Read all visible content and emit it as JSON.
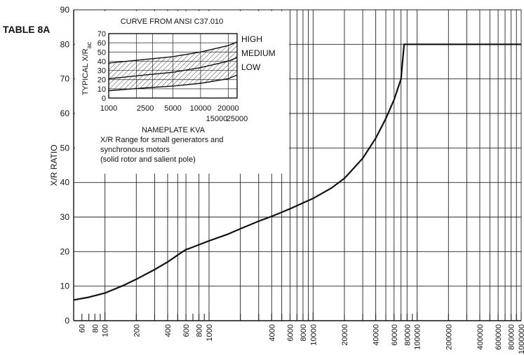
{
  "table_label": "TABLE 8A",
  "chart_data": {
    "type": "line",
    "xlabel": "",
    "ylabel": "X/R RATIO",
    "xscale": "log",
    "xlim": [
      50,
      1000000
    ],
    "ylim": [
      0,
      90
    ],
    "yticks": [
      0,
      10,
      20,
      30,
      40,
      50,
      60,
      70,
      80,
      90
    ],
    "yticks_right": [
      60,
      70,
      80
    ],
    "xtick_labels": [
      {
        "v": 60,
        "t": "60"
      },
      {
        "v": 80,
        "t": "80"
      },
      {
        "v": 100,
        "t": "100"
      },
      {
        "v": 200,
        "t": "200"
      },
      {
        "v": 400,
        "t": "400"
      },
      {
        "v": 600,
        "t": "600"
      },
      {
        "v": 800,
        "t": "800"
      },
      {
        "v": 1000,
        "t": "1000"
      },
      {
        "v": 4000,
        "t": "4000"
      },
      {
        "v": 6000,
        "t": "6000"
      },
      {
        "v": 8000,
        "t": "8000"
      },
      {
        "v": 10000,
        "t": "10000"
      },
      {
        "v": 20000,
        "t": "20000"
      },
      {
        "v": 40000,
        "t": "40000"
      },
      {
        "v": 60000,
        "t": "60000"
      },
      {
        "v": 80000,
        "t": "80000"
      },
      {
        "v": 100000,
        "t": "100000"
      },
      {
        "v": 200000,
        "t": "200000"
      },
      {
        "v": 400000,
        "t": "400000"
      },
      {
        "v": 600000,
        "t": "600000"
      },
      {
        "v": 800000,
        "t": "800000"
      },
      {
        "v": 1000000,
        "t": "1000000"
      }
    ],
    "series": [
      {
        "x": [
          50,
          70,
          100,
          150,
          200,
          300,
          400,
          500,
          600,
          630,
          700,
          800,
          1000,
          1500,
          2000,
          3000,
          4000,
          5000,
          6000,
          8000,
          10000,
          15000,
          20000,
          30000,
          40000,
          50000,
          60000,
          70000,
          75000,
          1000000
        ],
        "y": [
          6,
          6.8,
          8,
          10.2,
          12,
          14.8,
          17,
          19,
          20.6,
          20.8,
          21.3,
          22,
          23.1,
          25,
          26.6,
          28.8,
          30.2,
          31.4,
          32.4,
          34.1,
          35.4,
          38.4,
          41.2,
          47,
          52.8,
          58.5,
          64,
          70,
          80,
          80
        ]
      }
    ]
  },
  "inset": {
    "title": "CURVE FROM ANSI C37.010",
    "ylabel": "TYPICAL X/R",
    "ylabel_sub": "ac",
    "xlabel": "NAMEPLATE KVA",
    "yticks": [
      0,
      10,
      20,
      30,
      40,
      50,
      60,
      70
    ],
    "xticks_row1": [
      "1000",
      "2500",
      "5000",
      "10000",
      "20000"
    ],
    "xticks_row2": [
      "15000",
      "25000"
    ],
    "caption": [
      "X/R Range for small generators and",
      "synchronous motors",
      "(solid rotor and salient pole)"
    ],
    "curve_labels": [
      "HIGH",
      "MEDIUM",
      "LOW"
    ],
    "chart_data": {
      "type": "line",
      "xscale": "log",
      "xlim": [
        1000,
        25000
      ],
      "ylim": [
        0,
        70
      ],
      "series": [
        {
          "name": "HIGH",
          "x": [
            1000,
            2500,
            5000,
            10000,
            20000,
            25000
          ],
          "y": [
            38,
            42,
            45,
            50,
            57,
            61
          ]
        },
        {
          "name": "MEDIUM",
          "x": [
            1000,
            2500,
            5000,
            10000,
            20000,
            25000
          ],
          "y": [
            21,
            25,
            28,
            33,
            40,
            44
          ]
        },
        {
          "name": "LOW",
          "x": [
            1000,
            2500,
            5000,
            10000,
            20000,
            25000
          ],
          "y": [
            8,
            11,
            13,
            16,
            21,
            25
          ]
        }
      ]
    }
  }
}
